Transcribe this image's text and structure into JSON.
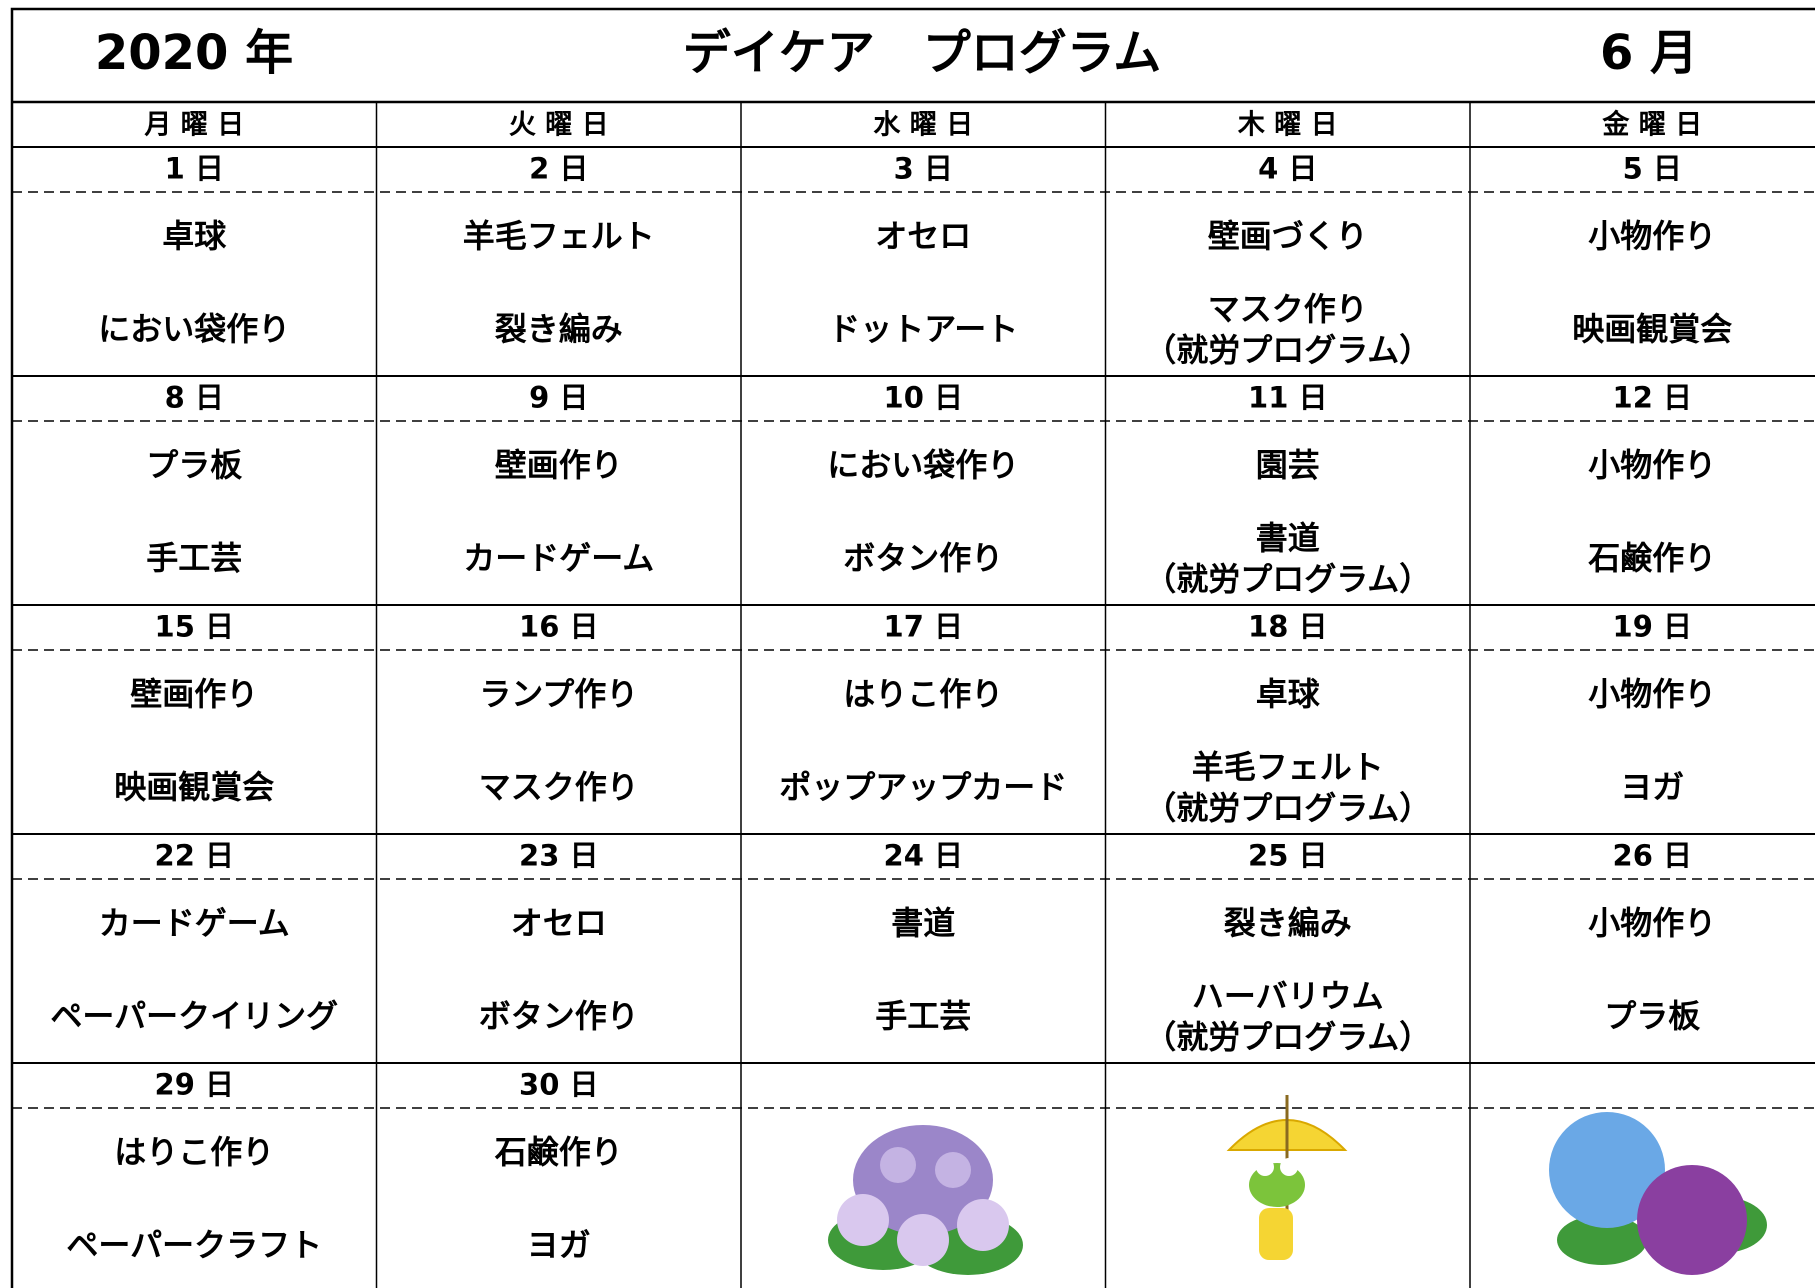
{
  "header": {
    "year": "2020 年",
    "title": "デイケア　プログラム",
    "month": "6 月"
  },
  "weekdays": [
    "月 曜 日",
    "火 曜 日",
    "水 曜 日",
    "木 曜 日",
    "金 曜 日"
  ],
  "weeks": [
    [
      {
        "date": "1 日",
        "activities": [
          "卓球",
          "におい袋作り"
        ]
      },
      {
        "date": "2 日",
        "activities": [
          "羊毛フェルト",
          "裂き編み"
        ]
      },
      {
        "date": "3 日",
        "activities": [
          "オセロ",
          "ドットアート"
        ]
      },
      {
        "date": "4 日",
        "activities": [
          "壁画づくり",
          [
            "マスク作り",
            "（就労プログラム）"
          ]
        ]
      },
      {
        "date": "5 日",
        "activities": [
          "小物作り",
          "映画観賞会"
        ]
      }
    ],
    [
      {
        "date": "8 日",
        "activities": [
          "プラ板",
          "手工芸"
        ]
      },
      {
        "date": "9 日",
        "activities": [
          "壁画作り",
          "カードゲーム"
        ]
      },
      {
        "date": "10 日",
        "activities": [
          "におい袋作り",
          "ボタン作り"
        ]
      },
      {
        "date": "11 日",
        "activities": [
          "園芸",
          [
            "書道",
            "（就労プログラム）"
          ]
        ]
      },
      {
        "date": "12 日",
        "activities": [
          "小物作り",
          "石鹸作り"
        ]
      }
    ],
    [
      {
        "date": "15 日",
        "activities": [
          "壁画作り",
          "映画観賞会"
        ]
      },
      {
        "date": "16 日",
        "activities": [
          "ランプ作り",
          "マスク作り"
        ]
      },
      {
        "date": "17 日",
        "activities": [
          "はりこ作り",
          "ポップアップカード"
        ]
      },
      {
        "date": "18 日",
        "activities": [
          "卓球",
          [
            "羊毛フェルト",
            "（就労プログラム）"
          ]
        ]
      },
      {
        "date": "19 日",
        "activities": [
          "小物作り",
          "ヨガ"
        ]
      }
    ],
    [
      {
        "date": "22 日",
        "activities": [
          "カードゲーム",
          "ペーパークイリング"
        ]
      },
      {
        "date": "23 日",
        "activities": [
          "オセロ",
          "ボタン作り"
        ]
      },
      {
        "date": "24 日",
        "activities": [
          "書道",
          "手工芸"
        ]
      },
      {
        "date": "25 日",
        "activities": [
          "裂き編み",
          [
            "ハーバリウム",
            "（就労プログラム）"
          ]
        ]
      },
      {
        "date": "26 日",
        "activities": [
          "小物作り",
          "プラ板"
        ]
      }
    ],
    [
      {
        "date": "29 日",
        "activities": [
          "はりこ作り",
          "ペーパークラフト"
        ]
      },
      {
        "date": "30 日",
        "activities": [
          "石鹸作り",
          "ヨガ"
        ]
      }
    ]
  ]
}
